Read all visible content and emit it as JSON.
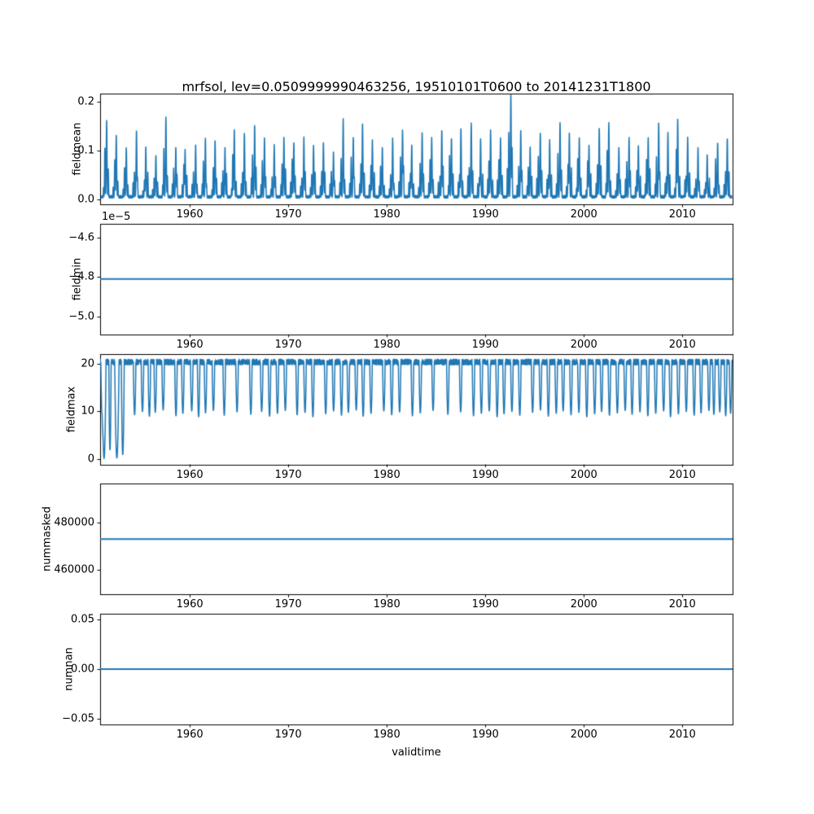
{
  "figure": {
    "title": "mrfsol, lev=0.0509999990463256, 19510101T0600 to 20141231T1800",
    "xlabel": "validtime",
    "x_range": [
      1950.9,
      2015.1
    ],
    "xticks": [
      1960,
      1970,
      1980,
      1990,
      2000,
      2010
    ],
    "xtick_labels": [
      "1960",
      "1970",
      "1980",
      "1990",
      "2000",
      "2010"
    ],
    "line_color": "#1f77b4",
    "axis_color": "#000000",
    "background": "#ffffff"
  },
  "chart_data": [
    {
      "type": "line",
      "title": "",
      "ylabel": "fieldmean",
      "xlabel": "",
      "x_range": [
        1950.9,
        2015.1
      ],
      "ylim": [
        -0.0098,
        0.2167
      ],
      "yticks": [
        0.0,
        0.1,
        0.2
      ],
      "ytick_labels": [
        "0.0",
        "0.1",
        "0.2"
      ],
      "grid": false,
      "legend": "none",
      "series_kind": "seasonal_spikes",
      "seed": 11,
      "baseline": 0.003,
      "years_start": 1951,
      "annual_peaks": [
        0.155,
        0.125,
        0.1,
        0.135,
        0.1,
        0.085,
        0.163,
        0.1,
        0.095,
        0.105,
        0.12,
        0.115,
        0.1,
        0.135,
        0.13,
        0.145,
        0.12,
        0.105,
        0.12,
        0.11,
        0.12,
        0.105,
        0.11,
        0.09,
        0.158,
        0.12,
        0.15,
        0.115,
        0.1,
        0.12,
        0.135,
        0.105,
        0.13,
        0.12,
        0.135,
        0.12,
        0.14,
        0.15,
        0.12,
        0.135,
        0.12,
        0.21,
        0.135,
        0.1,
        0.13,
        0.115,
        0.15,
        0.13,
        0.12,
        0.105,
        0.14,
        0.15,
        0.1,
        0.12,
        0.105,
        0.12,
        0.15,
        0.13,
        0.158,
        0.12,
        0.1,
        0.085,
        0.11,
        0.12
      ]
    },
    {
      "type": "line",
      "title": "",
      "ylabel": "fieldmin",
      "xlabel": "",
      "offset_text": "1e−5",
      "unit_multiplier": "1e-5",
      "x_range": [
        1950.9,
        2015.1
      ],
      "ylim": [
        -5.09,
        -4.53
      ],
      "yticks": [
        -4.6,
        -4.8,
        -5.0
      ],
      "ytick_labels": [
        "−4.6",
        "−4.8",
        "−5.0"
      ],
      "grid": false,
      "legend": "none",
      "series_kind": "constant",
      "constant": -4.81
    },
    {
      "type": "line",
      "title": "",
      "ylabel": "fieldmax",
      "xlabel": "",
      "x_range": [
        1950.9,
        2015.1
      ],
      "ylim": [
        -1.05,
        22.05
      ],
      "yticks": [
        0,
        10,
        20
      ],
      "ytick_labels": [
        "0",
        "10",
        "20"
      ],
      "grid": false,
      "legend": "none",
      "series_kind": "noisy_baseline_with_dips",
      "seed": 7,
      "baseline": 20.3,
      "noise_amp": 0.6,
      "dip_half_width": 0.13,
      "dips": [
        [
          1951.1,
          9.5
        ],
        [
          1951.3,
          0.2,
          0.2
        ],
        [
          1951.9,
          2.0,
          0.12
        ],
        [
          1952.6,
          0.3,
          0.22
        ],
        [
          1953.2,
          1.0,
          0.15
        ],
        [
          1954.4,
          9.3
        ],
        [
          1955.2,
          10.0
        ],
        [
          1955.9,
          9.0
        ],
        [
          1956.5,
          9.8
        ],
        [
          1957.3,
          10.3
        ],
        [
          1958.6,
          9.1
        ],
        [
          1959.3,
          9.6
        ],
        [
          1960.2,
          10.1
        ],
        [
          1960.9,
          8.9
        ],
        [
          1961.6,
          9.7
        ],
        [
          1962.4,
          10.2
        ],
        [
          1963.5,
          9.2
        ],
        [
          1964.8,
          9.9
        ],
        [
          1966.2,
          9.4
        ],
        [
          1967.3,
          10.0
        ],
        [
          1968.1,
          9.0
        ],
        [
          1968.9,
          9.6
        ],
        [
          1969.7,
          10.2
        ],
        [
          1970.9,
          9.3
        ],
        [
          1971.7,
          9.8
        ],
        [
          1972.5,
          8.9
        ],
        [
          1973.8,
          9.5
        ],
        [
          1974.6,
          10.1
        ],
        [
          1975.4,
          9.2
        ],
        [
          1976.1,
          9.8
        ],
        [
          1976.9,
          10.3
        ],
        [
          1977.6,
          9.0
        ],
        [
          1978.4,
          9.6
        ],
        [
          1979.7,
          10.1
        ],
        [
          1980.5,
          9.3
        ],
        [
          1981.3,
          9.9
        ],
        [
          1982.6,
          9.1
        ],
        [
          1983.4,
          9.7
        ],
        [
          1984.7,
          10.2
        ],
        [
          1986.2,
          9.4
        ],
        [
          1987.5,
          9.9
        ],
        [
          1988.8,
          9.1
        ],
        [
          1989.6,
          9.6
        ],
        [
          1990.4,
          10.1
        ],
        [
          1991.2,
          8.9
        ],
        [
          1991.9,
          9.5
        ],
        [
          1992.7,
          10.0
        ],
        [
          1993.5,
          9.2
        ],
        [
          1994.8,
          9.8
        ],
        [
          1995.6,
          10.3
        ],
        [
          1996.4,
          9.0
        ],
        [
          1997.2,
          9.6
        ],
        [
          1997.9,
          10.1
        ],
        [
          1998.7,
          9.3
        ],
        [
          1999.5,
          9.8
        ],
        [
          2000.3,
          8.9
        ],
        [
          2001.1,
          9.5
        ],
        [
          2001.8,
          10.0
        ],
        [
          2002.6,
          9.2
        ],
        [
          2003.4,
          9.7
        ],
        [
          2004.2,
          10.2
        ],
        [
          2004.9,
          9.4
        ],
        [
          2005.7,
          9.9
        ],
        [
          2006.5,
          9.1
        ],
        [
          2007.3,
          9.6
        ],
        [
          2008.1,
          10.1
        ],
        [
          2008.8,
          8.9
        ],
        [
          2009.6,
          9.5
        ],
        [
          2010.4,
          10.0
        ],
        [
          2011.2,
          9.2
        ],
        [
          2011.9,
          9.7
        ],
        [
          2012.7,
          10.2
        ],
        [
          2013.2,
          9.4
        ],
        [
          2013.8,
          9.9
        ],
        [
          2014.4,
          9.1
        ],
        [
          2014.9,
          9.6
        ]
      ]
    },
    {
      "type": "line",
      "title": "",
      "ylabel": "nummasked",
      "xlabel": "",
      "x_range": [
        1950.9,
        2015.1
      ],
      "ylim": [
        449350,
        496650
      ],
      "yticks": [
        460000,
        480000
      ],
      "ytick_labels": [
        "460000",
        "480000"
      ],
      "grid": false,
      "legend": "none",
      "series_kind": "constant",
      "constant": 473000
    },
    {
      "type": "line",
      "title": "",
      "ylabel": "numnan",
      "xlabel": "validtime",
      "x_range": [
        1950.9,
        2015.1
      ],
      "ylim": [
        -0.0555,
        0.0555
      ],
      "yticks": [
        -0.05,
        0.0,
        0.05
      ],
      "ytick_labels": [
        "−0.05",
        "0.00",
        "0.05"
      ],
      "grid": false,
      "legend": "none",
      "series_kind": "constant",
      "constant": 0.0
    }
  ]
}
